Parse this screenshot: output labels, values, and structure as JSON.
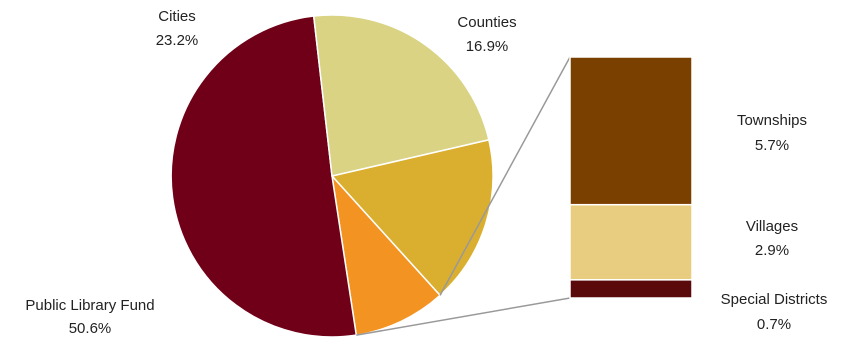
{
  "chart_data": {
    "type": "pie",
    "subtype": "bar-of-pie",
    "title": "",
    "slices": [
      {
        "label": "Counties",
        "value": 16.9,
        "display": "16.9%",
        "color": "#DAAE2F"
      },
      {
        "label": "",
        "value": 9.3,
        "display": "",
        "color": "#F39321"
      },
      {
        "label": "Public Library Fund",
        "value": 50.6,
        "display": "50.6%",
        "color": "#700018"
      },
      {
        "label": "Cities",
        "value": 23.2,
        "display": "23.2%",
        "color": "#D9D383"
      }
    ],
    "bar_breakdown": [
      {
        "label": "Townships",
        "value": 5.7,
        "display": "5.7%",
        "color": "#7A4000"
      },
      {
        "label": "Villages",
        "value": 2.9,
        "display": "2.9%",
        "color": "#E8CC7F"
      },
      {
        "label": "Special Districts",
        "value": 0.7,
        "display": "0.7%",
        "color": "#5A0A0A"
      }
    ],
    "connector_color": "#999999",
    "slice_border_color": "#ffffff"
  }
}
